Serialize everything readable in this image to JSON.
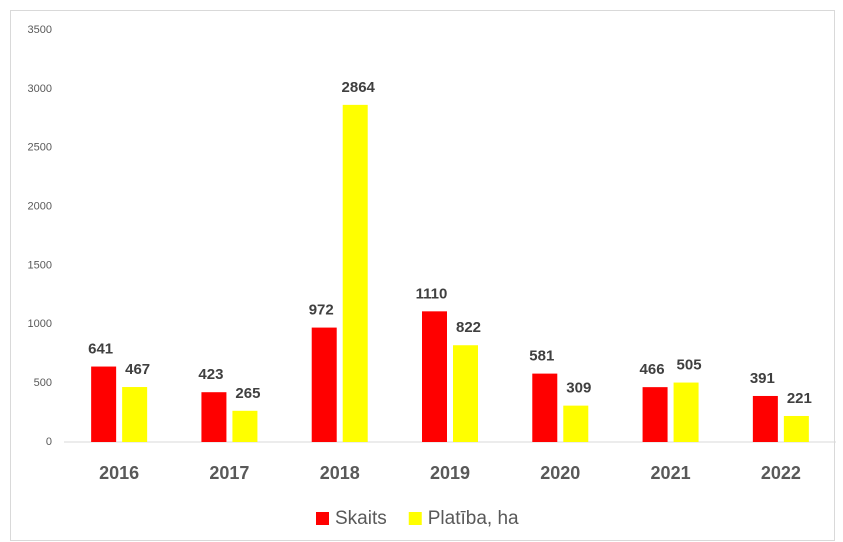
{
  "chart_data": {
    "type": "bar",
    "categories": [
      "2016",
      "2017",
      "2018",
      "2019",
      "2020",
      "2021",
      "2022"
    ],
    "series": [
      {
        "name": "Skaits",
        "color": "#ff0000",
        "values": [
          641,
          423,
          972,
          1110,
          581,
          466,
          391
        ]
      },
      {
        "name": "Platība, ha",
        "color": "#ffff00",
        "values": [
          467,
          265,
          2864,
          822,
          309,
          505,
          221
        ]
      }
    ],
    "ylim": [
      0,
      3500
    ],
    "yticks": [
      0,
      500,
      1000,
      1500,
      2000,
      2500,
      3000,
      3500
    ],
    "grid": false,
    "legend": "bottom"
  }
}
